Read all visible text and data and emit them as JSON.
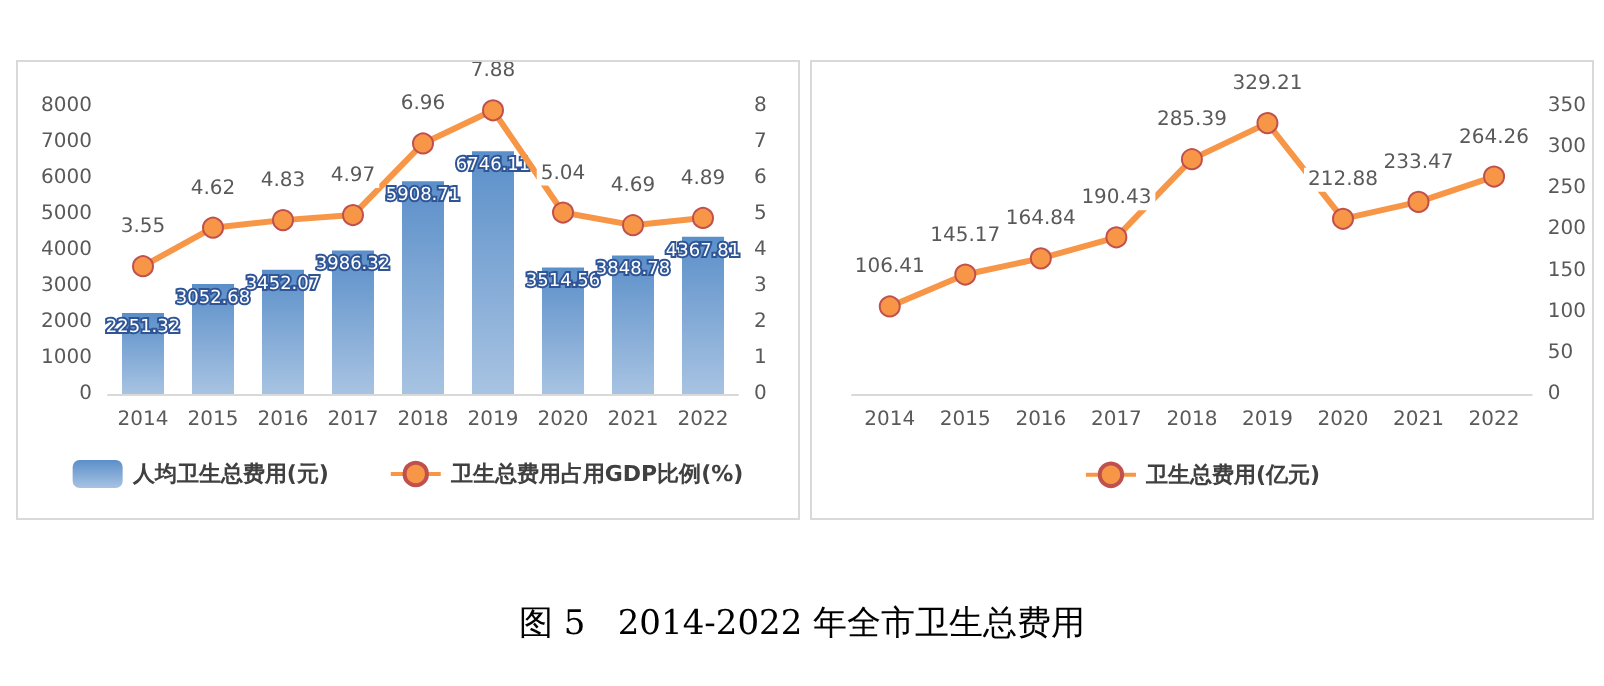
{
  "chart_data": [
    {
      "type": "bar",
      "categories": [
        "2014",
        "2015",
        "2016",
        "2017",
        "2018",
        "2019",
        "2020",
        "2021",
        "2022"
      ],
      "series": [
        {
          "name": "人均卫生总费用(元)",
          "type": "bar",
          "color": "#5b8fc9",
          "values": [
            2251.32,
            3052.68,
            3452.07,
            3986.32,
            5908.71,
            6746.11,
            3514.56,
            3848.78,
            4367.81
          ]
        },
        {
          "name": "卫生总费用占用GDP比例(%)",
          "type": "line",
          "axis": "y2",
          "color": "#f79646",
          "values": [
            3.55,
            4.62,
            4.83,
            4.97,
            6.96,
            7.88,
            5.04,
            4.69,
            4.89
          ]
        }
      ],
      "ylim": [
        0,
        8000
      ],
      "yticks": [
        0,
        1000,
        2000,
        3000,
        4000,
        5000,
        6000,
        7000,
        8000
      ],
      "y2lim": [
        0,
        8
      ],
      "y2ticks": [
        0,
        1,
        2,
        3,
        4,
        5,
        6,
        7,
        8
      ],
      "data_labels": true,
      "legend": "bottom",
      "grid": false,
      "marker": "circle"
    },
    {
      "type": "line",
      "categories": [
        "2014",
        "2015",
        "2016",
        "2017",
        "2018",
        "2019",
        "2020",
        "2021",
        "2022"
      ],
      "series": [
        {
          "name": "卫生总费用(亿元)",
          "color": "#f79646",
          "values": [
            106.41,
            145.17,
            164.84,
            190.43,
            285.39,
            329.21,
            212.88,
            233.47,
            264.26
          ]
        }
      ],
      "ylim": [
        0,
        350
      ],
      "yticks": [
        0,
        50,
        100,
        150,
        200,
        250,
        300,
        350
      ],
      "data_labels": true,
      "legend": "bottom",
      "grid": false,
      "marker": "circle"
    },
    {
      "type": "other",
      "title": "图 5   2014-2022 年全市卫生总费用"
    }
  ]
}
